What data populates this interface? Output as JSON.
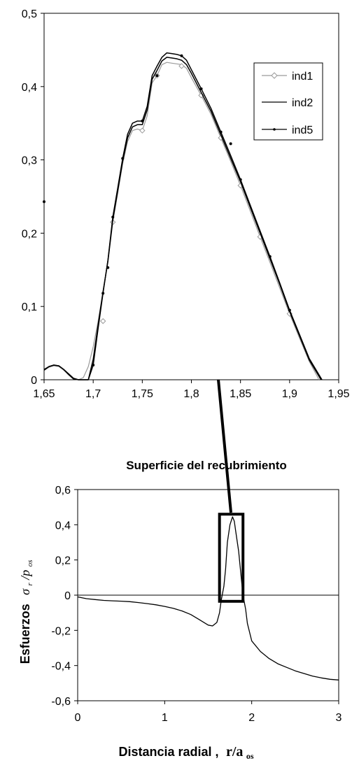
{
  "chart_data": [
    {
      "type": "line",
      "title": "",
      "xlabel": "",
      "ylabel": "",
      "xlim": [
        1.65,
        1.95
      ],
      "ylim": [
        0,
        0.5
      ],
      "x_ticks": [
        "1,65",
        "1,7",
        "1,75",
        "1,8",
        "1,85",
        "1,9",
        "1,95"
      ],
      "y_ticks": [
        "0",
        "0,1",
        "0,2",
        "0,3",
        "0,4",
        "0,5"
      ],
      "legend_position": "top-right",
      "series": [
        {
          "name": "ind1",
          "color": "#9a9a9a",
          "marker": "diamond",
          "x": [
            1.65,
            1.655,
            1.66,
            1.665,
            1.67,
            1.675,
            1.68,
            1.685,
            1.69,
            1.695,
            1.7,
            1.705,
            1.71,
            1.715,
            1.72,
            1.725,
            1.73,
            1.735,
            1.74,
            1.745,
            1.75,
            1.755,
            1.76,
            1.765,
            1.77,
            1.775,
            1.78,
            1.785,
            1.79,
            1.795,
            1.8,
            1.81,
            1.82,
            1.83,
            1.84,
            1.85,
            1.86,
            1.87,
            1.88,
            1.89,
            1.9,
            1.91,
            1.92,
            1.93
          ],
          "y": [
            0.013,
            0.017,
            0.019,
            0.018,
            0.013,
            0.007,
            0.001,
            0.0,
            0.003,
            0.018,
            0.045,
            0.08,
            0.12,
            0.16,
            0.215,
            0.255,
            0.295,
            0.325,
            0.34,
            0.342,
            0.34,
            0.36,
            0.405,
            0.415,
            0.43,
            0.433,
            0.432,
            0.431,
            0.43,
            0.425,
            0.412,
            0.388,
            0.362,
            0.33,
            0.298,
            0.265,
            0.23,
            0.195,
            0.16,
            0.125,
            0.09,
            0.057,
            0.025,
            0.0
          ],
          "markers_x": [
            1.71,
            1.72,
            1.75,
            1.765,
            1.79,
            1.81,
            1.83,
            1.85,
            1.87,
            1.9
          ],
          "markers_y": [
            0.08,
            0.215,
            0.34,
            0.415,
            0.428,
            0.388,
            0.33,
            0.265,
            0.195,
            0.09
          ]
        },
        {
          "name": "ind2",
          "color": "#000000",
          "marker": "none",
          "x": [
            1.65,
            1.655,
            1.66,
            1.665,
            1.67,
            1.675,
            1.68,
            1.685,
            1.69,
            1.695,
            1.7,
            1.705,
            1.71,
            1.715,
            1.72,
            1.725,
            1.73,
            1.735,
            1.74,
            1.745,
            1.75,
            1.755,
            1.76,
            1.765,
            1.77,
            1.775,
            1.78,
            1.785,
            1.79,
            1.795,
            1.8,
            1.81,
            1.82,
            1.83,
            1.84,
            1.85,
            1.86,
            1.87,
            1.88,
            1.89,
            1.9,
            1.91,
            1.92,
            1.932
          ],
          "y": [
            0.013,
            0.018,
            0.02,
            0.019,
            0.014,
            0.007,
            0.001,
            0.0,
            0.0,
            0.0,
            0.028,
            0.075,
            0.12,
            0.162,
            0.218,
            0.258,
            0.298,
            0.33,
            0.345,
            0.348,
            0.348,
            0.368,
            0.41,
            0.422,
            0.435,
            0.44,
            0.439,
            0.438,
            0.436,
            0.43,
            0.418,
            0.392,
            0.366,
            0.334,
            0.302,
            0.27,
            0.235,
            0.2,
            0.165,
            0.13,
            0.093,
            0.06,
            0.027,
            0.0
          ]
        },
        {
          "name": "ind5",
          "color": "#000000",
          "marker": "dot",
          "x": [
            1.65,
            1.655,
            1.66,
            1.665,
            1.67,
            1.675,
            1.68,
            1.685,
            1.69,
            1.695,
            1.7,
            1.705,
            1.71,
            1.715,
            1.72,
            1.725,
            1.73,
            1.735,
            1.74,
            1.745,
            1.75,
            1.755,
            1.76,
            1.765,
            1.77,
            1.775,
            1.78,
            1.785,
            1.79,
            1.795,
            1.8,
            1.81,
            1.82,
            1.83,
            1.84,
            1.85,
            1.86,
            1.87,
            1.88,
            1.89,
            1.9,
            1.91,
            1.92,
            1.933
          ],
          "y": [
            0.014,
            0.018,
            0.02,
            0.019,
            0.014,
            0.008,
            0.002,
            0.0,
            0.0,
            0.0,
            0.02,
            0.07,
            0.118,
            0.163,
            0.222,
            0.262,
            0.302,
            0.335,
            0.35,
            0.353,
            0.353,
            0.373,
            0.415,
            0.428,
            0.44,
            0.446,
            0.445,
            0.444,
            0.442,
            0.436,
            0.423,
            0.397,
            0.37,
            0.338,
            0.306,
            0.273,
            0.238,
            0.203,
            0.168,
            0.132,
            0.095,
            0.062,
            0.029,
            0.0
          ],
          "markers_x": [
            1.65,
            1.7,
            1.71,
            1.715,
            1.72,
            1.73,
            1.75,
            1.765,
            1.79,
            1.81,
            1.83,
            1.84,
            1.85,
            1.88,
            1.9
          ],
          "markers_y": [
            0.243,
            0.02,
            0.118,
            0.153,
            0.222,
            0.302,
            0.353,
            0.415,
            0.442,
            0.397,
            0.338,
            0.322,
            0.273,
            0.168,
            0.095
          ]
        }
      ]
    },
    {
      "type": "line",
      "title": "Superficie del recubrimiento",
      "xlabel": "Distancia radial ,",
      "xlabel_math": "r/a",
      "xlabel_math_sub": "os",
      "ylabel": "Esfuerzos",
      "ylabel_math": "σ",
      "ylabel_math_sub": "r",
      "ylabel_math2": "/p",
      "ylabel_math2_sub": "os",
      "xlim": [
        0,
        3
      ],
      "ylim": [
        -0.6,
        0.6
      ],
      "x_ticks": [
        "0",
        "1",
        "2",
        "3"
      ],
      "y_ticks": [
        "0,6",
        "0,4",
        "0,2",
        "0",
        "-0,2",
        "-0,4",
        "-0,6"
      ],
      "highlight_box": {
        "x": [
          1.63,
          1.9
        ],
        "y": [
          -0.035,
          0.46
        ]
      },
      "series": [
        {
          "name": "",
          "color": "#000000",
          "x": [
            0,
            0.1,
            0.2,
            0.3,
            0.4,
            0.5,
            0.6,
            0.7,
            0.8,
            0.9,
            1.0,
            1.1,
            1.2,
            1.3,
            1.4,
            1.5,
            1.55,
            1.6,
            1.63,
            1.65,
            1.68,
            1.7,
            1.72,
            1.75,
            1.78,
            1.8,
            1.82,
            1.85,
            1.88,
            1.9,
            1.93,
            1.95,
            2.0,
            2.1,
            2.2,
            2.3,
            2.4,
            2.5,
            2.6,
            2.7,
            2.8,
            2.9,
            3.0
          ],
          "y": [
            -0.01,
            -0.02,
            -0.025,
            -0.03,
            -0.032,
            -0.034,
            -0.037,
            -0.042,
            -0.048,
            -0.055,
            -0.064,
            -0.075,
            -0.09,
            -0.11,
            -0.14,
            -0.17,
            -0.175,
            -0.155,
            -0.1,
            -0.03,
            0.05,
            0.15,
            0.3,
            0.4,
            0.445,
            0.42,
            0.35,
            0.25,
            0.1,
            0.0,
            -0.08,
            -0.16,
            -0.26,
            -0.32,
            -0.36,
            -0.39,
            -0.41,
            -0.43,
            -0.445,
            -0.46,
            -0.47,
            -0.478,
            -0.482
          ]
        }
      ]
    }
  ]
}
